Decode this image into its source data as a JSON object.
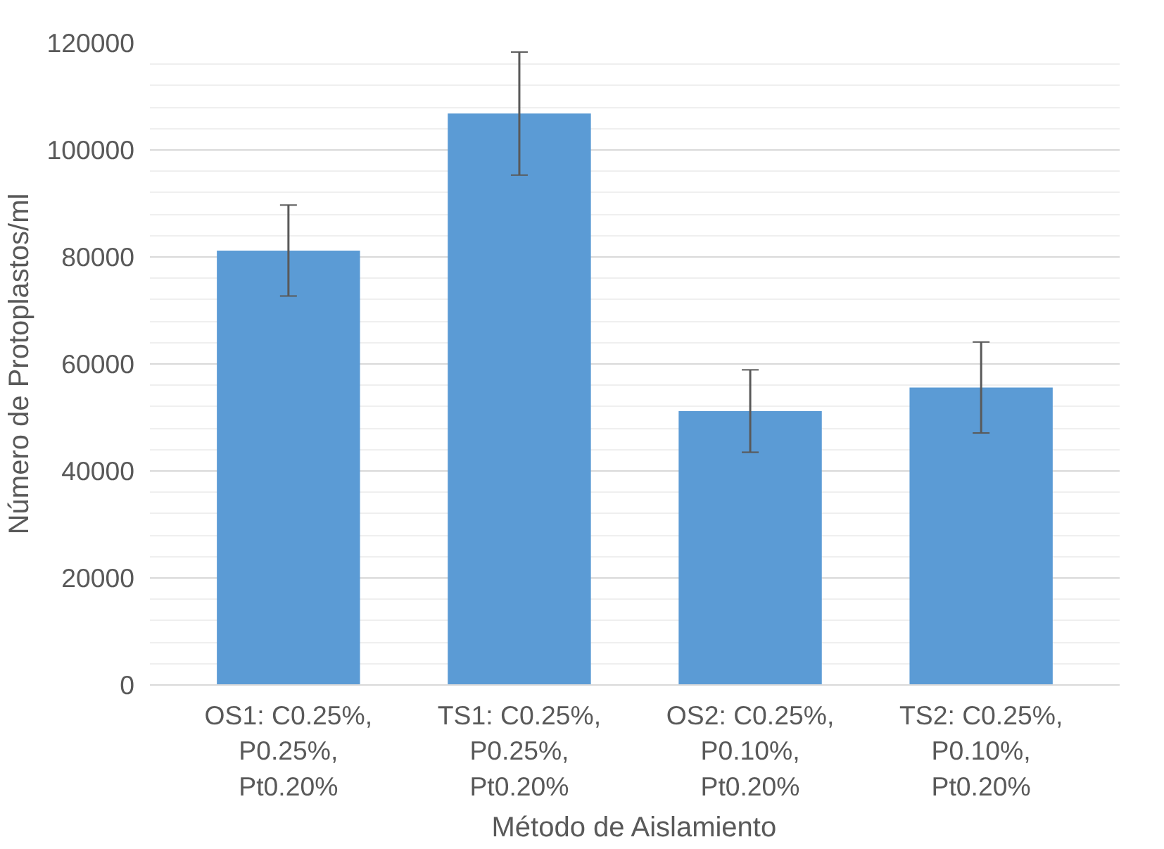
{
  "chart_data": {
    "type": "bar",
    "xlabel": "Método de Aislamiento",
    "ylabel": "Número de Protoplastos/ml",
    "categories": [
      "OS1: C0.25%, P0.25%, Pt0.20%",
      "TS1: C0.25%, P0.25%, Pt0.20%",
      "OS2: C0.25%, P0.10%, Pt0.20%",
      "TS2: C0.25%, P0.10%, Pt0.20%"
    ],
    "values": [
      81200,
      106800,
      51200,
      55600
    ],
    "errors": [
      8500,
      11500,
      7700,
      8500
    ],
    "color": "#5b9bd5",
    "ylim": [
      0,
      120000
    ],
    "yticks": [
      0,
      20000,
      40000,
      60000,
      80000,
      100000,
      120000
    ],
    "grid": "y"
  }
}
